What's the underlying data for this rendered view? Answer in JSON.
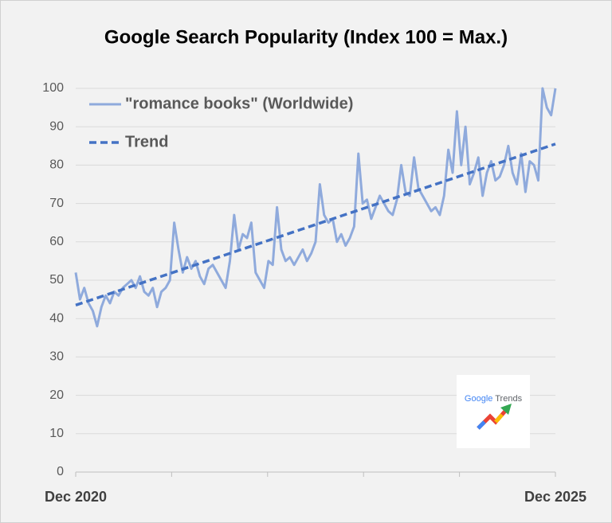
{
  "chart_data": {
    "type": "line",
    "title": "Google Search Popularity (Index 100 = Max.)",
    "categories": [
      "Dec 2020",
      null,
      null,
      null,
      null,
      null,
      null,
      null,
      null,
      null,
      null,
      null,
      null,
      null,
      null,
      null,
      null,
      null,
      null,
      null,
      null,
      null,
      null,
      null,
      null,
      null,
      null,
      null,
      null,
      null,
      null,
      null,
      null,
      null,
      null,
      null,
      null,
      null,
      null,
      null,
      null,
      null,
      null,
      null,
      null,
      null,
      null,
      null,
      null,
      null,
      null,
      null,
      null,
      null,
      null,
      null,
      null,
      null,
      null,
      null,
      null,
      null,
      null,
      null,
      null,
      null,
      null,
      null,
      null,
      null,
      null,
      null,
      null,
      null,
      null,
      null,
      null,
      null,
      null,
      null,
      null,
      null,
      null,
      null,
      null,
      null,
      null,
      null,
      null,
      null,
      null,
      null,
      null,
      null,
      null,
      null,
      null,
      null,
      null,
      null,
      null,
      null,
      null,
      null,
      null,
      null,
      null,
      null,
      null,
      null,
      null,
      null,
      "Dec 2025"
    ],
    "series": [
      {
        "name": "\"romance books\" (Worldwide)",
        "color": "#8faadc",
        "values": [
          52,
          45,
          48,
          44,
          42,
          38,
          43,
          46,
          44,
          47,
          46,
          48,
          49,
          50,
          48,
          51,
          47,
          46,
          48,
          43,
          47,
          48,
          50,
          65,
          58,
          52,
          56,
          53,
          55,
          51,
          49,
          53,
          54,
          52,
          50,
          48,
          55,
          67,
          58,
          62,
          61,
          65,
          52,
          50,
          48,
          55,
          54,
          69,
          58,
          55,
          56,
          54,
          56,
          58,
          55,
          57,
          60,
          75,
          67,
          65,
          66,
          60,
          62,
          59,
          61,
          64,
          83,
          70,
          71,
          66,
          69,
          72,
          70,
          68,
          67,
          71,
          80,
          73,
          72,
          82,
          74,
          72,
          70,
          68,
          69,
          67,
          72,
          84,
          78,
          94,
          80,
          90,
          75,
          78,
          82,
          72,
          78,
          81,
          76,
          77,
          80,
          85,
          78,
          75,
          83,
          73,
          81,
          80,
          76,
          100,
          95,
          93,
          100
        ]
      }
    ],
    "trend": {
      "name": "Trend",
      "color": "#4472c4",
      "values": [
        43.5,
        85.5
      ]
    },
    "ylim": [
      0,
      100
    ],
    "yticks": [
      0,
      10,
      20,
      30,
      40,
      50,
      60,
      70,
      80,
      90,
      100
    ],
    "grid": true
  },
  "logo": {
    "brand": "Google",
    "product": "Trends"
  }
}
